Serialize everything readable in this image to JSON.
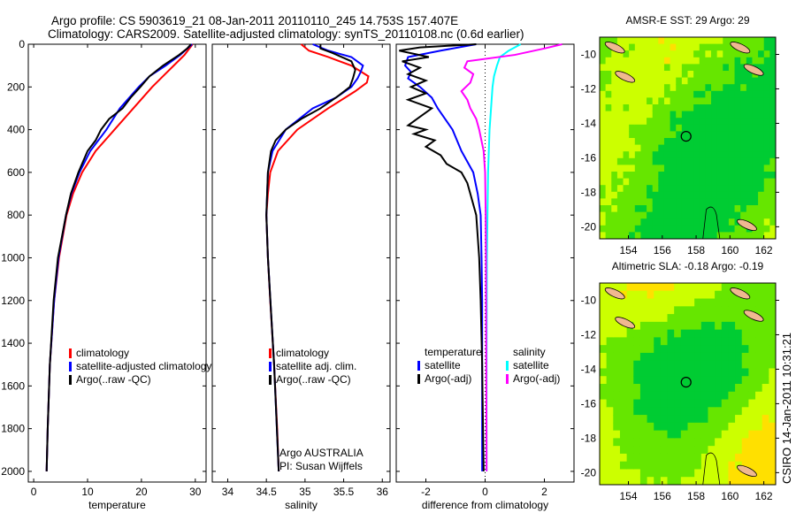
{
  "header": {
    "title_line1": "Argo profile: CS 5903619_21 08-Jan-2011 20110110_245 14.753S 157.407E",
    "title_line2": "Climatology: CARS2009. Satellite-adjusted climatology: synTS_20110108.nc (0.6d earlier)"
  },
  "footer_stamp": "CSIRO 14-Jan-2011 10:31:21",
  "credit": {
    "line1": "Argo AUSTRALIA",
    "line2": "PI: Susan Wijffels"
  },
  "colors": {
    "climatology": "#ff0000",
    "satellite": "#0000ff",
    "argo": "#000000",
    "sal_satellite": "#00ffff",
    "sal_argo": "#ff00ff"
  },
  "chart_data": [
    {
      "type": "line",
      "xlabel": "temperature",
      "ylabel": "",
      "xlim": [
        -1,
        32
      ],
      "ylim": [
        2050,
        0
      ],
      "xticks": [
        0,
        10,
        20,
        30
      ],
      "yticks": [
        0,
        200,
        400,
        600,
        800,
        1000,
        1200,
        1400,
        1600,
        1800,
        2000
      ],
      "legend": [
        "climatology",
        "satellite-adjusted climatology",
        "Argo(..raw -QC)"
      ],
      "series": [
        {
          "name": "climatology",
          "color": "#ff0000",
          "depth": [
            0,
            50,
            100,
            150,
            200,
            300,
            400,
            500,
            600,
            700,
            800,
            1000,
            1200,
            1500,
            1800,
            2000
          ],
          "values": [
            29.5,
            28,
            26,
            24,
            22,
            18.5,
            15,
            11.5,
            9,
            7.3,
            6.1,
            4.7,
            3.8,
            3,
            2.6,
            2.4
          ]
        },
        {
          "name": "satellite-adjusted climatology",
          "color": "#0000ff",
          "depth": [
            0,
            50,
            100,
            150,
            200,
            300,
            400,
            500,
            600,
            700,
            800,
            1000,
            1200,
            1500,
            1800,
            2000
          ],
          "values": [
            29.4,
            27.2,
            24.5,
            21.5,
            19.5,
            16,
            13.5,
            10.5,
            8.5,
            7,
            6,
            4.6,
            3.8,
            3,
            2.6,
            2.4
          ]
        },
        {
          "name": "Argo(..raw -QC)",
          "color": "#000000",
          "depth": [
            0,
            20,
            50,
            100,
            150,
            200,
            250,
            300,
            350,
            400,
            450,
            500,
            600,
            700,
            800,
            1000,
            1200,
            1500,
            1800,
            2000
          ],
          "values": [
            29.2,
            28.5,
            27,
            24,
            21.5,
            19.8,
            18,
            16.5,
            14,
            12.5,
            11.5,
            10,
            8.3,
            6.9,
            6,
            4.5,
            3.7,
            3,
            2.6,
            2.4
          ]
        }
      ]
    },
    {
      "type": "line",
      "xlabel": "salinity",
      "xlim": [
        33.8,
        36.1
      ],
      "ylim": [
        2050,
        0
      ],
      "xticks": [
        34,
        34.5,
        35,
        35.5,
        36
      ],
      "legend": [
        "climatology",
        "satellite adj. clim.",
        "Argo(..raw -QC)"
      ],
      "series": [
        {
          "name": "climatology",
          "color": "#ff0000",
          "depth": [
            0,
            30,
            60,
            100,
            150,
            180,
            220,
            300,
            400,
            500,
            600,
            700,
            800,
            1000,
            1200,
            1500,
            1800,
            2000
          ],
          "values": [
            34.95,
            35.05,
            35.3,
            35.6,
            35.82,
            35.8,
            35.65,
            35.3,
            34.9,
            34.65,
            34.55,
            34.52,
            34.5,
            34.52,
            34.55,
            34.6,
            34.64,
            34.66
          ]
        },
        {
          "name": "satellite adj. clim.",
          "color": "#0000ff",
          "depth": [
            0,
            30,
            60,
            100,
            130,
            160,
            200,
            250,
            300,
            400,
            500,
            600,
            800,
            1000,
            1500,
            2000
          ],
          "values": [
            35.1,
            35.3,
            35.6,
            35.75,
            35.72,
            35.68,
            35.6,
            35.4,
            35.1,
            34.75,
            34.58,
            34.52,
            34.5,
            34.52,
            34.6,
            34.66
          ]
        },
        {
          "name": "Argo(..raw -QC)",
          "color": "#000000",
          "depth": [
            0,
            20,
            40,
            80,
            120,
            160,
            200,
            250,
            300,
            350,
            400,
            450,
            500,
            600,
            800,
            1000,
            1500,
            2000
          ],
          "values": [
            35.2,
            35.2,
            35.35,
            35.6,
            35.65,
            35.62,
            35.58,
            35.4,
            35.2,
            34.95,
            34.75,
            34.62,
            34.56,
            34.52,
            34.5,
            34.52,
            34.6,
            34.66
          ]
        }
      ]
    },
    {
      "type": "line",
      "xlabel": "difference from climatology",
      "xlim": [
        -3,
        3
      ],
      "ylim": [
        2050,
        0
      ],
      "xticks": [
        -2,
        0,
        2
      ],
      "zero_line": "dotted",
      "legend_temperature": {
        "title": "temperature",
        "items": [
          "satellite",
          "Argo(-adj)"
        ]
      },
      "legend_salinity": {
        "title": "salinity",
        "items": [
          "satellite",
          "Argo(-adj)"
        ]
      },
      "series": [
        {
          "name": "temperature satellite",
          "color": "#0000ff",
          "depth": [
            0,
            30,
            60,
            100,
            130,
            160,
            200,
            250,
            300,
            400,
            500,
            600,
            700,
            800,
            1000,
            1200,
            1500,
            2000
          ],
          "values": [
            -0.3,
            -1.5,
            -2.6,
            -2.7,
            -2.5,
            -2.6,
            -2.2,
            -1.8,
            -1.6,
            -1.1,
            -0.8,
            -0.4,
            -0.25,
            -0.15,
            -0.12,
            -0.1,
            -0.1,
            -0.1
          ]
        },
        {
          "name": "temperature Argo(-adj)",
          "color": "#000000",
          "depth": [
            0,
            15,
            30,
            60,
            80,
            110,
            140,
            170,
            200,
            230,
            260,
            300,
            340,
            380,
            400,
            420,
            450,
            480,
            520,
            560,
            600,
            650,
            700,
            800,
            900,
            1000,
            1200,
            1500,
            2000
          ],
          "values": [
            -0.3,
            -2.2,
            -2.9,
            -1.9,
            -2.8,
            -2.2,
            -2.6,
            -2.0,
            -2.5,
            -2.0,
            -2.6,
            -1.8,
            -2.2,
            -2.6,
            -2.0,
            -2.4,
            -1.7,
            -2.0,
            -1.5,
            -1.3,
            -0.8,
            -0.6,
            -0.5,
            -0.3,
            -0.25,
            -0.2,
            -0.15,
            -0.1,
            -0.05
          ]
        },
        {
          "name": "salinity satellite",
          "color": "#00ffff",
          "depth": [
            0,
            30,
            60,
            100,
            150,
            200,
            300,
            400,
            600,
            800,
            1000,
            1500,
            2000
          ],
          "values": [
            1.2,
            0.8,
            0.5,
            0.4,
            0.3,
            0.25,
            0.2,
            0.15,
            0.1,
            0.08,
            0.06,
            0.05,
            0.05
          ]
        },
        {
          "name": "salinity Argo(-adj)",
          "color": "#ff00ff",
          "depth": [
            0,
            20,
            50,
            80,
            110,
            140,
            180,
            220,
            260,
            300,
            350,
            400,
            500,
            600,
            800,
            1000,
            1500,
            2000
          ],
          "values": [
            2.6,
            2.0,
            1.0,
            -0.6,
            -0.7,
            -0.4,
            -0.5,
            -0.8,
            -0.6,
            -0.5,
            -0.3,
            -0.2,
            -0.05,
            0.0,
            0.02,
            0.03,
            0.04,
            0.05
          ]
        }
      ]
    },
    {
      "type": "heatmap",
      "title": "AMSR-E SST: 29 Argo: 29",
      "xlim": [
        152.3,
        162.7
      ],
      "ylim": [
        -20.7,
        -9.0
      ],
      "xticks": [
        154,
        156,
        158,
        160,
        162
      ],
      "yticks": [
        -10,
        -12,
        -14,
        -16,
        -18,
        -20
      ],
      "argo_position": [
        157.407,
        -14.753
      ]
    },
    {
      "type": "heatmap",
      "title": "Altimetric SLA: -0.18 Argo: -0.19",
      "xlim": [
        152.3,
        162.7
      ],
      "ylim": [
        -20.7,
        -9.0
      ],
      "xticks": [
        154,
        156,
        158,
        160,
        162
      ],
      "yticks": [
        -10,
        -12,
        -14,
        -16,
        -18,
        -20
      ],
      "argo_position": [
        157.407,
        -14.753
      ]
    }
  ]
}
